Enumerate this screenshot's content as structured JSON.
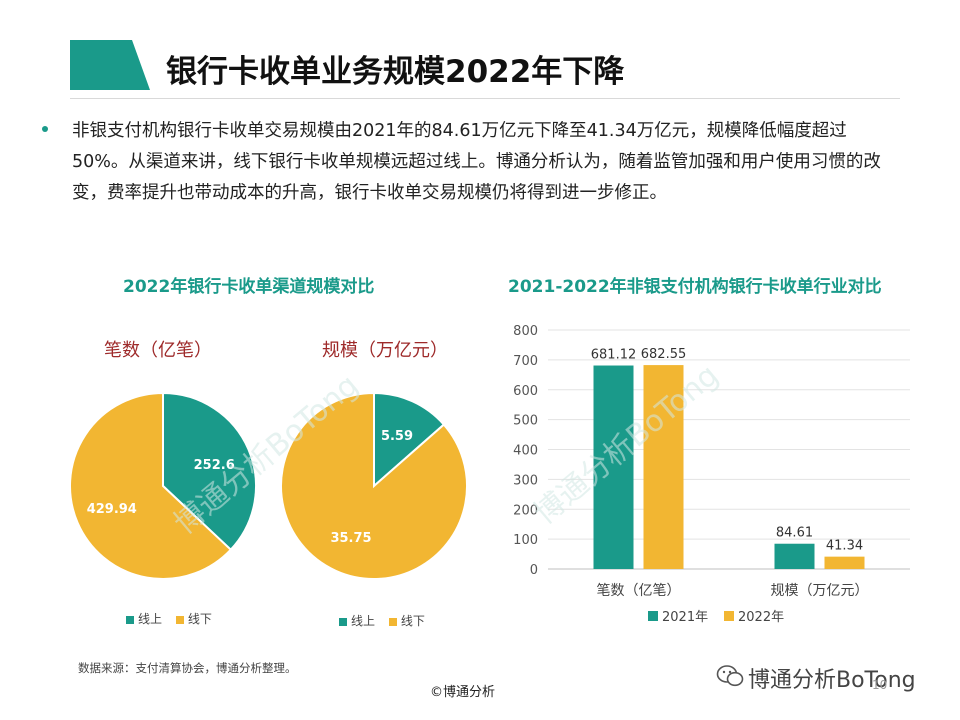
{
  "title": "银行卡收单业务规模2022年下降",
  "bullet": "非银支付机构银行卡收单交易规模由2021年的84.61万亿元下降至41.34万亿元，规模降低幅度超过50%。从渠道来讲，线下银行卡收单规模远超过线上。博通分析认为，随着监管加强和用户使用习惯的改变，费率提升也带动成本的升高，银行卡收单交易规模仍将得到进一步修正。",
  "colors": {
    "teal": "#1a9a8a",
    "gold": "#f2b632",
    "pie_label": "#9e2a2a"
  },
  "chart_data": [
    {
      "type": "pie",
      "group_title": "2022年银行卡收单渠道规模对比",
      "title": "笔数（亿笔）",
      "slices": [
        {
          "label": "线上",
          "value": 252.6,
          "color": "#1a9a8a"
        },
        {
          "label": "线下",
          "value": 429.94,
          "color": "#f2b632"
        }
      ],
      "legend": [
        "线上",
        "线下"
      ]
    },
    {
      "type": "pie",
      "title": "规模（万亿元）",
      "slices": [
        {
          "label": "线上",
          "value": 5.59,
          "color": "#1a9a8a"
        },
        {
          "label": "线下",
          "value": 35.75,
          "color": "#f2b632"
        }
      ],
      "legend": [
        "线上",
        "线下"
      ]
    },
    {
      "type": "bar",
      "title": "2021-2022年非银支付机构银行卡收单行业对比",
      "categories": [
        "笔数（亿笔）",
        "规模（万亿元）"
      ],
      "series": [
        {
          "name": "2021年",
          "values": [
            681.12,
            84.61
          ],
          "color": "#1a9a8a"
        },
        {
          "name": "2022年",
          "values": [
            682.55,
            41.34
          ],
          "color": "#f2b632"
        }
      ],
      "ylim": [
        0,
        800
      ],
      "yticks": [
        0,
        100,
        200,
        300,
        400,
        500,
        600,
        700,
        800
      ],
      "grid": true,
      "legend_position": "bottom"
    }
  ],
  "footer": {
    "source": "数据来源：支付清算协会，博通分析整理。",
    "copyright": "©博通分析",
    "brand": "博通分析BoTong",
    "page": "10"
  }
}
